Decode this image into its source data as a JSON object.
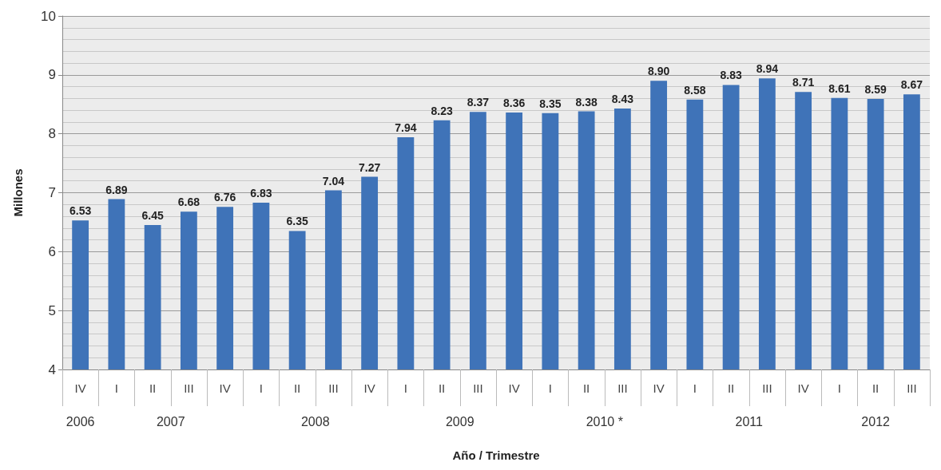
{
  "chart_data": {
    "type": "bar",
    "xlabel": "Año / Trimestre",
    "ylabel": "Millones",
    "categories": [
      "IV",
      "I",
      "II",
      "III",
      "IV",
      "I",
      "II",
      "III",
      "IV",
      "I",
      "II",
      "III",
      "IV",
      "I",
      "II",
      "III",
      "IV",
      "I",
      "II",
      "III",
      "IV",
      "I",
      "II",
      "III"
    ],
    "values": [
      6.53,
      6.89,
      6.45,
      6.68,
      6.76,
      6.83,
      6.35,
      7.04,
      7.27,
      7.94,
      8.23,
      8.37,
      8.36,
      8.35,
      8.38,
      8.43,
      8.9,
      8.58,
      8.83,
      8.94,
      8.71,
      8.61,
      8.59,
      8.67
    ],
    "value_labels": [
      "6.53",
      "6.89",
      "6.45",
      "6.68",
      "6.76",
      "6.83",
      "6.35",
      "7.04",
      "7.27",
      "7.94",
      "8.23",
      "8.37",
      "8.36",
      "8.35",
      "8.38",
      "8.43",
      "8.90",
      "8.58",
      "8.83",
      "8.94",
      "8.71",
      "8.61",
      "8.59",
      "8.67"
    ],
    "color": "#3f73b8",
    "annotations": [
      "2006",
      "2007",
      "2008",
      "2009",
      "2010 *",
      "2011",
      "2012"
    ],
    "ylim": [
      4,
      10
    ],
    "yticks": [
      4,
      5,
      6,
      7,
      8,
      9,
      10
    ],
    "grid": "y"
  }
}
